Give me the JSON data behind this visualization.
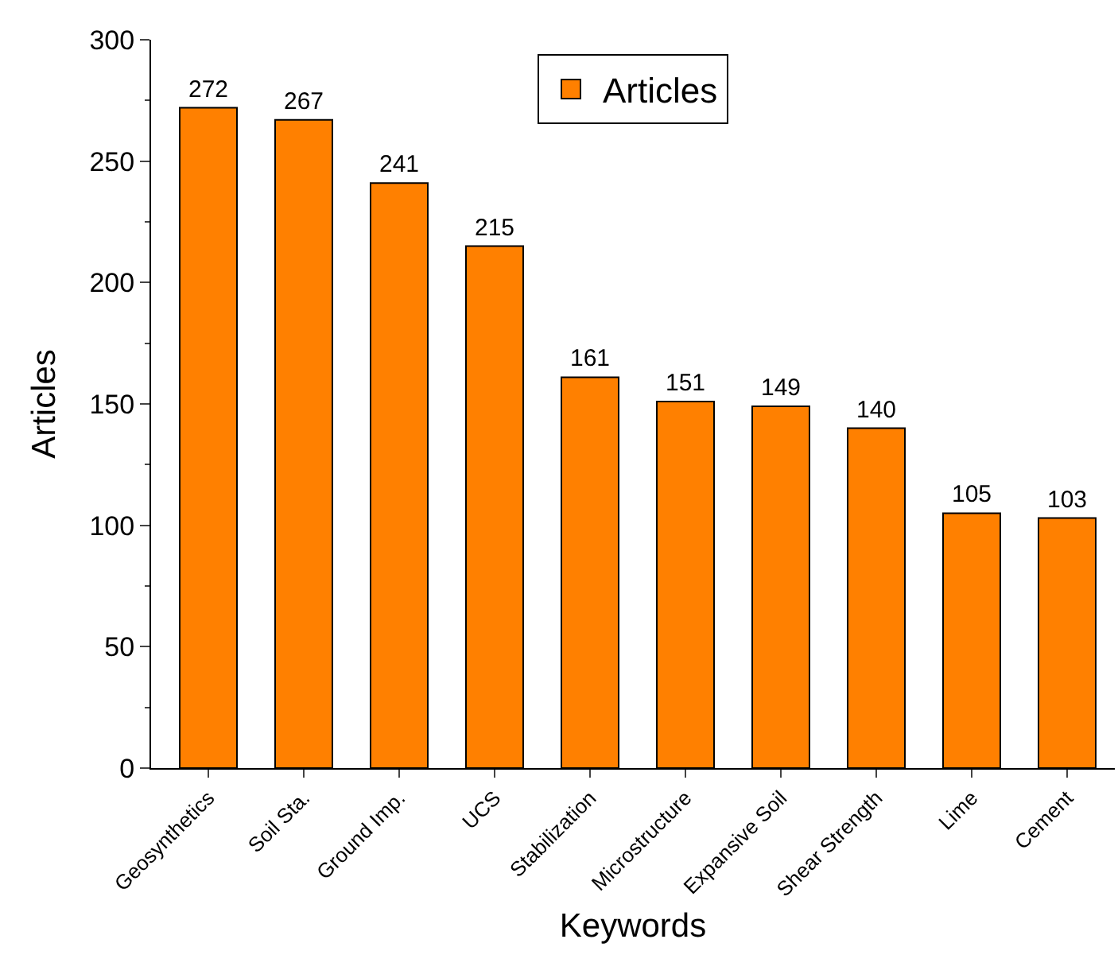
{
  "chart_data": {
    "type": "bar",
    "xlabel": "Keywords",
    "ylabel": "Articles",
    "categories": [
      "Geosynthetics",
      "Soil Sta.",
      "Ground Imp.",
      "UCS",
      "Stabilization",
      "Microstructure",
      "Expansive Soil",
      "Shear Strength",
      "Lime",
      "Cement"
    ],
    "series": [
      {
        "name": "Articles",
        "color": "#ff8000",
        "values": [
          272,
          267,
          241,
          215,
          161,
          151,
          149,
          140,
          105,
          103
        ]
      }
    ],
    "ylim": [
      0,
      300
    ],
    "yticks": [
      0,
      50,
      100,
      150,
      200,
      250,
      300
    ],
    "data_labels": true,
    "legend": "top"
  }
}
